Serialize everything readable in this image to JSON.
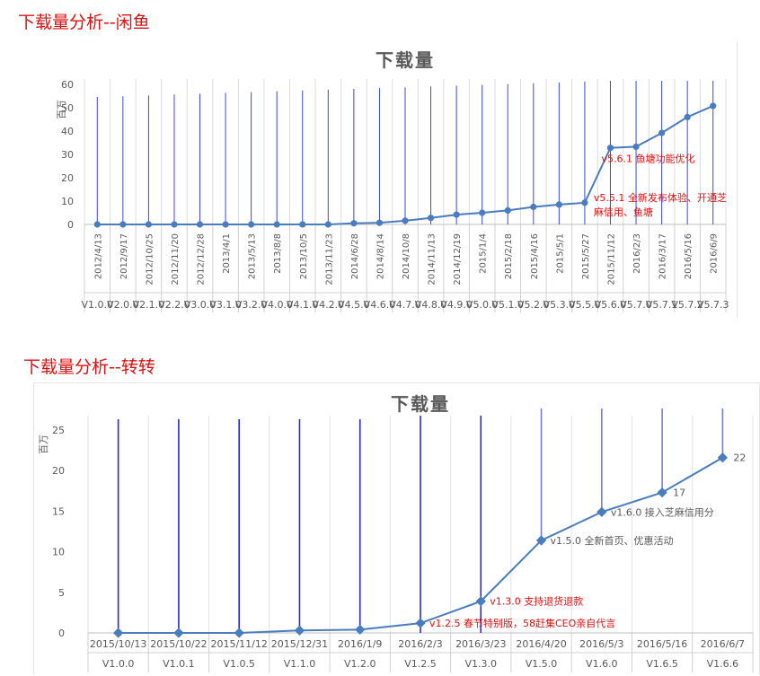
{
  "sections": [
    {
      "heading": "下载量分析--闲鱼"
    },
    {
      "heading": "下载量分析--转转"
    }
  ],
  "chart_data": [
    {
      "type": "line",
      "title": "下载量",
      "ylabel": "百万",
      "ylim": [
        0,
        60
      ],
      "yticks": [
        0,
        10,
        20,
        30,
        40,
        50,
        60
      ],
      "categories": [
        "2012/4/13",
        "2012/9/17",
        "2012/10/25",
        "2012/11/20",
        "2012/12/28",
        "2013/4/1",
        "2013/5/13",
        "2013/8/8",
        "2013/10/5",
        "2013/11/23",
        "2014/6/28",
        "2014/8/14",
        "2014/10/8",
        "2014/11/13",
        "2014/12/19",
        "2015/1/4",
        "2015/2/18",
        "2015/4/16",
        "2015/5/1",
        "2015/5/27",
        "2015/11/12",
        "2016/2/3",
        "2016/3/17",
        "2016/5/16",
        "2016/6/9"
      ],
      "versions": [
        "V1.0.0",
        "V2.0.0",
        "V2.1.0",
        "V2.2.0",
        "V3.0.0",
        "V3.1.0",
        "V3.2.0",
        "V4.0.0",
        "V4.1.0",
        "V4.2.0",
        "V4.5.0",
        "V4.6.0",
        "V4.7.0",
        "V4.8.0",
        "V4.9.0",
        "V5.0.0",
        "V5.1.0",
        "V5.2.0",
        "V5.3.0",
        "V5.5.0",
        "V5.6.0",
        "V5.7.0",
        "V5.7.1",
        "V5.7.2",
        "V5.7.3"
      ],
      "version_labels": [
        "V1.0.0",
        "V2.0.0",
        "V2.1.0",
        "V2.2.0",
        "V3.0.0",
        "V3.1.0",
        "V3.2.0",
        "V4.0.0",
        "V4.1.0",
        "V4.2.0",
        "V4.5.0",
        "V4.6.0",
        "V4.7.0",
        "V4.8.0",
        "V4.9.0",
        "V5.0.0",
        "V5.1.0",
        "V5.2.0",
        "V5.3.0",
        "V5.5.0",
        "V5.6.0",
        "V5.7.0",
        "V5.7.1",
        "V5.7.2",
        "V5.7.3"
      ],
      "values": [
        0,
        0,
        0,
        0,
        0,
        0,
        0,
        0,
        0,
        0,
        0.5,
        0.7,
        1.6,
        2.8,
        4.2,
        5.0,
        6.0,
        7.5,
        8.5,
        9.3,
        32.8,
        33.3,
        39.2,
        46.0,
        50.8
      ],
      "annotations": [
        {
          "index": 20,
          "text": "v5.6.1 鱼塘功能优化"
        },
        {
          "index": 19,
          "lines": [
            "v5.5.1 全新发布体验、开通芝",
            "麻信用、鱼塘"
          ]
        }
      ],
      "colors": {
        "line": "#4a7cc0",
        "marker": "#4a7cc0",
        "vertical": "#3d48d8",
        "annotation": "#e01010"
      }
    },
    {
      "type": "line",
      "title": "下载量",
      "ylabel": "百万",
      "ylim": [
        0,
        25
      ],
      "yticks": [
        0,
        5,
        10,
        15,
        20,
        25
      ],
      "categories": [
        "2015/10/13",
        "2015/10/22",
        "2015/11/12",
        "2015/12/31",
        "2016/1/9",
        "2016/2/3",
        "2016/3/23",
        "2016/4/20",
        "2016/5/3",
        "2016/5/16",
        "2016/6/7"
      ],
      "versions": [
        "V1.0.0",
        "V1.0.1",
        "V1.0.5",
        "V1.1.0",
        "V1.2.0",
        "V1.2.5",
        "V1.3.0",
        "V1.5.0",
        "V1.6.0",
        "V1.6.5",
        "V1.6.6"
      ],
      "values": [
        0,
        0,
        0,
        0.3,
        0.4,
        1.2,
        3.9,
        11.4,
        14.9,
        17.3,
        21.6
      ],
      "data_labels": [
        {
          "index": 9,
          "text": "17"
        },
        {
          "index": 10,
          "text": "22"
        }
      ],
      "annotations": [
        {
          "index": 7,
          "text": "v1.5.0  全新首页、优惠活动",
          "color": "gray"
        },
        {
          "index": 8,
          "text": "v1.6.0  接入芝麻信用分",
          "color": "gray"
        },
        {
          "index": 6,
          "text": "v1.3.0  支持退货退款",
          "color": "red"
        },
        {
          "index": 5,
          "text": "v1.2.5  春节特别版，58赶集CEO亲自代言",
          "color": "red"
        }
      ],
      "colors": {
        "line": "#4a7cc0",
        "marker": "#4a7cc0",
        "vertical": "#2a2ad0",
        "annotation": "#e01010",
        "annotation_gray": "#595959"
      }
    }
  ]
}
